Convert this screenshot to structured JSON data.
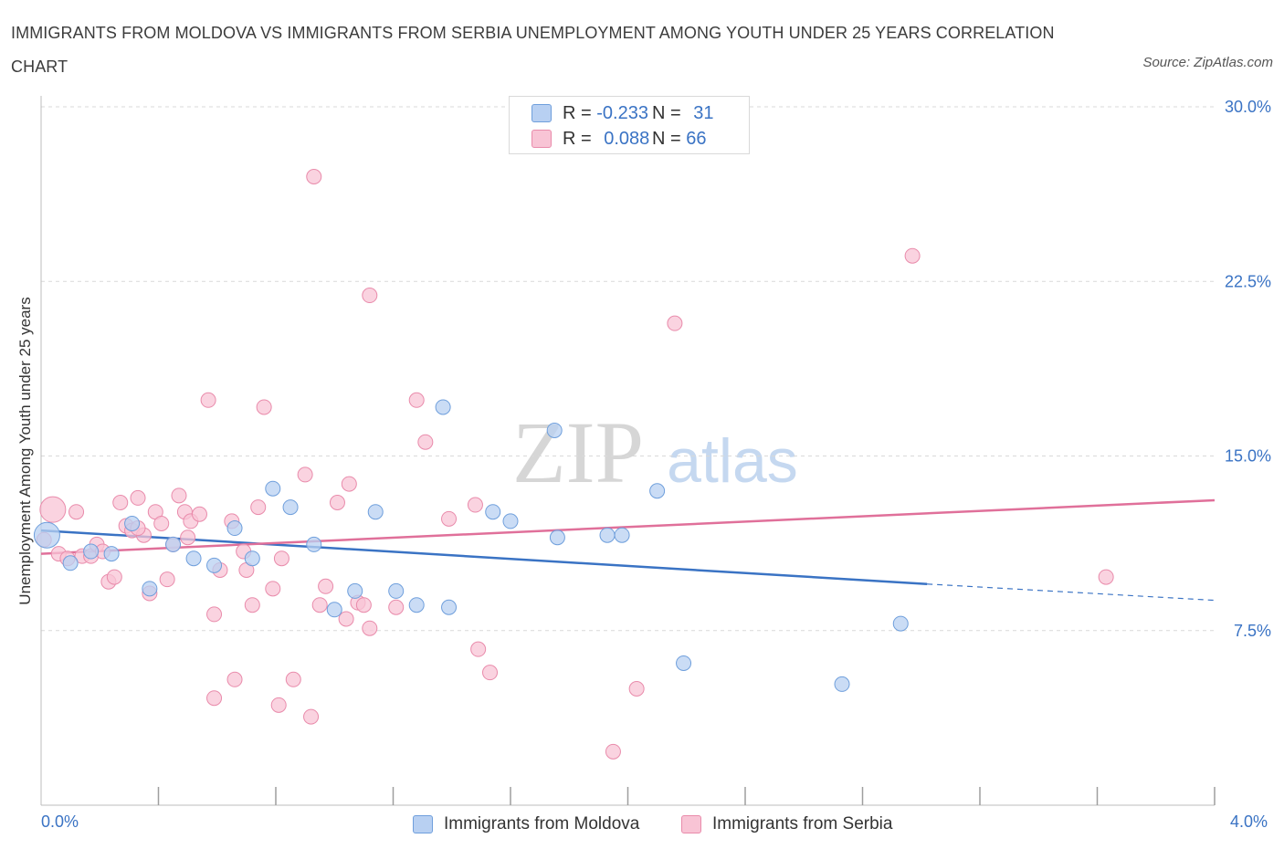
{
  "title": "IMMIGRANTS FROM MOLDOVA VS IMMIGRANTS FROM SERBIA UNEMPLOYMENT AMONG YOUTH UNDER 25 YEARS CORRELATION CHART",
  "source": "Source: ZipAtlas.com",
  "watermark": {
    "zip": "ZIP",
    "atlas": "atlas"
  },
  "legend": {
    "moldova": {
      "r_label": "R =",
      "r_value": "-0.233",
      "n_label": "N =",
      "n_value": "31"
    },
    "serbia": {
      "r_label": "R =",
      "r_value": "0.088",
      "n_label": "N =",
      "n_value": "66"
    }
  },
  "colors": {
    "moldova_fill": "#b8d0f2",
    "moldova_stroke": "#6f9fdc",
    "moldova_line": "#3a73c4",
    "serbia_fill": "#f8c4d5",
    "serbia_stroke": "#e98bab",
    "serbia_line": "#e0709a",
    "axis_text": "#3a73c4",
    "grid": "#d9d9d9"
  },
  "chart_data": {
    "type": "scatter",
    "title": "IMMIGRANTS FROM MOLDOVA VS IMMIGRANTS FROM SERBIA UNEMPLOYMENT AMONG YOUTH UNDER 25 YEARS CORRELATION CHART",
    "xlabel": "",
    "ylabel": "Unemployment Among Youth under 25 years",
    "xlim": [
      0,
      4.0
    ],
    "ylim": [
      0,
      30.0
    ],
    "x_tick_labels": [
      "0.0%",
      "4.0%"
    ],
    "y_ticks": [
      7.5,
      15.0,
      22.5,
      30.0
    ],
    "y_tick_labels": [
      "7.5%",
      "15.0%",
      "22.5%",
      "30.0%"
    ],
    "grid": true,
    "series": [
      {
        "name": "Immigrants from Moldova",
        "r": -0.233,
        "n": 31,
        "trend": {
          "x": [
            0.0,
            3.02
          ],
          "y": [
            11.8,
            9.5
          ],
          "dashed_to": [
            4.0,
            8.8
          ]
        },
        "points": [
          [
            0.02,
            11.6,
            "big"
          ],
          [
            0.1,
            10.4
          ],
          [
            0.17,
            10.9
          ],
          [
            0.24,
            10.8
          ],
          [
            0.31,
            12.1
          ],
          [
            0.37,
            9.3
          ],
          [
            0.45,
            11.2
          ],
          [
            0.52,
            10.6
          ],
          [
            0.59,
            10.3
          ],
          [
            0.66,
            11.9
          ],
          [
            0.72,
            10.6
          ],
          [
            0.79,
            13.6
          ],
          [
            0.85,
            12.8
          ],
          [
            0.93,
            11.2
          ],
          [
            1.0,
            8.4
          ],
          [
            1.07,
            9.2
          ],
          [
            1.14,
            12.6
          ],
          [
            1.21,
            9.2
          ],
          [
            1.28,
            8.6
          ],
          [
            1.37,
            17.1
          ],
          [
            1.39,
            8.5
          ],
          [
            1.54,
            12.6
          ],
          [
            1.6,
            12.2
          ],
          [
            1.75,
            16.1
          ],
          [
            1.76,
            11.5
          ],
          [
            1.93,
            11.6
          ],
          [
            1.98,
            11.6
          ],
          [
            2.1,
            13.5
          ],
          [
            2.19,
            6.1
          ],
          [
            2.73,
            5.2
          ],
          [
            2.93,
            7.8
          ]
        ]
      },
      {
        "name": "Immigrants from Serbia",
        "r": 0.088,
        "n": 66,
        "trend": {
          "x": [
            0.0,
            4.0
          ],
          "y": [
            10.8,
            13.1
          ]
        },
        "points": [
          [
            0.01,
            11.4
          ],
          [
            0.04,
            12.7,
            "big"
          ],
          [
            0.06,
            10.8
          ],
          [
            0.09,
            10.6
          ],
          [
            0.12,
            12.6
          ],
          [
            0.14,
            10.7
          ],
          [
            0.17,
            10.7
          ],
          [
            0.19,
            11.2
          ],
          [
            0.21,
            10.9
          ],
          [
            0.23,
            9.6
          ],
          [
            0.25,
            9.8
          ],
          [
            0.27,
            13.0
          ],
          [
            0.29,
            12.0
          ],
          [
            0.31,
            11.8
          ],
          [
            0.33,
            13.2
          ],
          [
            0.35,
            11.6
          ],
          [
            0.37,
            9.1
          ],
          [
            0.39,
            12.6
          ],
          [
            0.41,
            12.1
          ],
          [
            0.43,
            9.7
          ],
          [
            0.45,
            11.2
          ],
          [
            0.47,
            13.3
          ],
          [
            0.49,
            12.6
          ],
          [
            0.5,
            11.5
          ],
          [
            0.51,
            12.2
          ],
          [
            0.54,
            12.5
          ],
          [
            0.57,
            17.4
          ],
          [
            0.59,
            4.6
          ],
          [
            0.59,
            8.2
          ],
          [
            0.61,
            10.1
          ],
          [
            0.65,
            12.2
          ],
          [
            0.66,
            5.4
          ],
          [
            0.69,
            10.9
          ],
          [
            0.7,
            10.1
          ],
          [
            0.72,
            8.6
          ],
          [
            0.74,
            12.8
          ],
          [
            0.76,
            17.1
          ],
          [
            0.79,
            9.3
          ],
          [
            0.81,
            4.3
          ],
          [
            0.82,
            10.6
          ],
          [
            0.86,
            5.4
          ],
          [
            0.9,
            14.2
          ],
          [
            0.92,
            3.8
          ],
          [
            0.93,
            27.0
          ],
          [
            0.95,
            8.6
          ],
          [
            0.97,
            9.4
          ],
          [
            1.01,
            13.0
          ],
          [
            1.04,
            8.0
          ],
          [
            1.05,
            13.8
          ],
          [
            1.08,
            8.7
          ],
          [
            1.1,
            8.6
          ],
          [
            1.12,
            7.6
          ],
          [
            1.12,
            21.9
          ],
          [
            1.21,
            8.5
          ],
          [
            1.28,
            17.4
          ],
          [
            1.31,
            15.6
          ],
          [
            1.39,
            12.3
          ],
          [
            1.48,
            12.9
          ],
          [
            1.49,
            6.7
          ],
          [
            1.53,
            5.7
          ],
          [
            1.95,
            2.3
          ],
          [
            2.03,
            5.0
          ],
          [
            2.16,
            20.7
          ],
          [
            2.97,
            23.6
          ],
          [
            3.63,
            9.8
          ],
          [
            0.33,
            11.9
          ]
        ]
      }
    ]
  },
  "bottom_legend": {
    "moldova": "Immigrants from Moldova",
    "serbia": "Immigrants from Serbia"
  },
  "x_axis": {
    "left": "0.0%",
    "right": "4.0%"
  }
}
